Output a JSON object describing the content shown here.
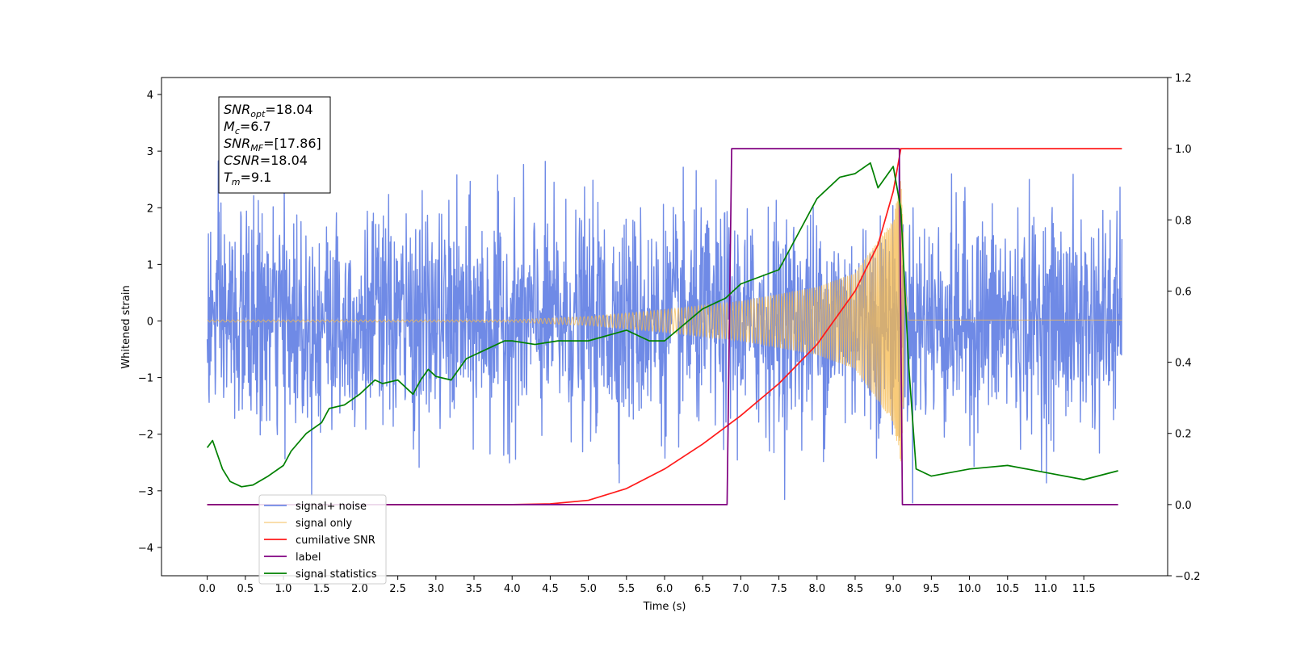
{
  "chart_data": {
    "type": "line",
    "title": "",
    "xlabel": "Time (s)",
    "ylabel": "Whitened strain",
    "y2label": "",
    "xlim": [
      -0.6,
      12.6
    ],
    "ylim": [
      -4.5,
      4.3
    ],
    "y2lim": [
      -0.2,
      1.2
    ],
    "x_ticks": [
      "0.0",
      "0.5",
      "1.0",
      "1.5",
      "2.0",
      "2.5",
      "3.0",
      "3.5",
      "4.0",
      "4.5",
      "5.0",
      "5.5",
      "6.0",
      "6.5",
      "7.0",
      "7.5",
      "8.0",
      "8.5",
      "9.0",
      "9.5",
      "10.0",
      "10.5",
      "11.0",
      "11.5"
    ],
    "y_ticks": [
      "-4",
      "-3",
      "-2",
      "-1",
      "0",
      "1",
      "2",
      "3",
      "4"
    ],
    "y2_ticks": [
      "-0.2",
      "0.0",
      "0.2",
      "0.4",
      "0.6",
      "0.8",
      "1.0",
      "1.2"
    ],
    "grid": false,
    "legend_position": "lower-left",
    "annotation": [
      {
        "var": "SNR",
        "sub": "opt",
        "text": "=18.04"
      },
      {
        "var": "M",
        "sub": "c",
        "text": "=6.7"
      },
      {
        "var": "SNR",
        "sub": "MF",
        "text": "=[17.86]"
      },
      {
        "var": "CSNR",
        "sub": "",
        "text": "=18.04"
      },
      {
        "var": "T",
        "sub": "m",
        "text": "=9.1"
      }
    ],
    "series": [
      {
        "name": "signal+ noise",
        "color": "#6f8ae6",
        "axis": "left",
        "kind": "noise",
        "x_range": [
          0.0,
          12.0
        ],
        "envelope_std": 0.95,
        "peak_max": 3.5,
        "peak_min": -4.1
      },
      {
        "name": "signal only",
        "color": "#f5b94d",
        "axis": "left",
        "kind": "chirp",
        "x_range": [
          0.0,
          12.0
        ],
        "merger_time": 9.1,
        "amplitude_at": [
          [
            4.0,
            0.02
          ],
          [
            5.0,
            0.08
          ],
          [
            6.0,
            0.2
          ],
          [
            7.0,
            0.35
          ],
          [
            8.0,
            0.6
          ],
          [
            8.5,
            0.85
          ],
          [
            9.0,
            1.8
          ],
          [
            9.1,
            2.5
          ],
          [
            9.2,
            0.03
          ]
        ]
      },
      {
        "name": "cumilative SNR",
        "color": "#ff1a1a",
        "axis": "right",
        "x": [
          0.0,
          4.0,
          4.5,
          5.0,
          5.5,
          6.0,
          6.5,
          7.0,
          7.5,
          8.0,
          8.5,
          8.8,
          9.0,
          9.1,
          12.0
        ],
        "values": [
          0.0,
          0.0,
          0.002,
          0.012,
          0.045,
          0.1,
          0.17,
          0.25,
          0.34,
          0.45,
          0.6,
          0.73,
          0.88,
          1.0,
          1.0
        ]
      },
      {
        "name": "label",
        "color": "#800080",
        "axis": "right",
        "x": [
          0.0,
          6.82,
          6.88,
          9.08,
          9.12,
          11.95
        ],
        "values": [
          0.0,
          0.0,
          1.0,
          1.0,
          0.0,
          0.0
        ]
      },
      {
        "name": "signal statistics",
        "color": "#008000",
        "axis": "right",
        "x": [
          0.0,
          0.07,
          0.2,
          0.3,
          0.45,
          0.6,
          0.8,
          1.0,
          1.1,
          1.3,
          1.5,
          1.6,
          1.8,
          2.0,
          2.2,
          2.3,
          2.5,
          2.7,
          2.8,
          2.9,
          3.0,
          3.2,
          3.4,
          3.5,
          3.7,
          3.9,
          4.0,
          4.3,
          4.6,
          5.0,
          5.5,
          5.8,
          6.0,
          6.5,
          6.8,
          7.0,
          7.5,
          7.8,
          8.0,
          8.3,
          8.5,
          8.7,
          8.8,
          9.0,
          9.1,
          9.2,
          9.3,
          9.5,
          10.0,
          10.5,
          11.0,
          11.5,
          11.95
        ],
        "values": [
          0.16,
          0.18,
          0.1,
          0.065,
          0.05,
          0.055,
          0.08,
          0.11,
          0.15,
          0.2,
          0.23,
          0.27,
          0.28,
          0.31,
          0.35,
          0.34,
          0.35,
          0.31,
          0.35,
          0.38,
          0.36,
          0.35,
          0.41,
          0.42,
          0.44,
          0.46,
          0.46,
          0.45,
          0.46,
          0.46,
          0.49,
          0.46,
          0.46,
          0.55,
          0.58,
          0.62,
          0.66,
          0.78,
          0.86,
          0.92,
          0.93,
          0.96,
          0.89,
          0.95,
          0.83,
          0.4,
          0.1,
          0.08,
          0.1,
          0.11,
          0.09,
          0.07,
          0.095
        ]
      }
    ]
  }
}
